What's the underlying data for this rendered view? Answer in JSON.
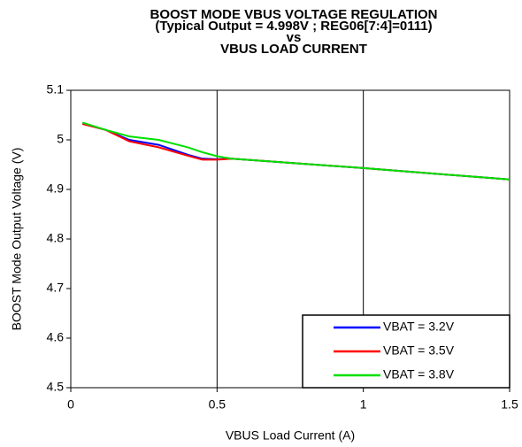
{
  "chart_data": {
    "type": "line",
    "title": [
      "BOOST MODE VBUS VOLTAGE REGULATION",
      "(Typical Output = 4.998V ; REG06[7:4]=0111)",
      "vs",
      "VBUS LOAD CURRENT"
    ],
    "x_label": "VBUS Load Current (A)",
    "y_label": "BOOST Mode Output Voltage (V)",
    "x": [
      0.04,
      0.12,
      0.2,
      0.3,
      0.4,
      0.45,
      0.5,
      0.55,
      1,
      1.5
    ],
    "series": [
      {
        "name": "VBAT = 3.2V",
        "color": "#0000ff",
        "values": [
          5.033,
          5.02,
          5.0,
          4.99,
          4.97,
          4.962,
          4.961,
          4.962,
          4.943,
          4.92
        ]
      },
      {
        "name": "VBAT = 3.5V",
        "color": "#ff0000",
        "values": [
          5.032,
          5.02,
          4.997,
          4.985,
          4.968,
          4.96,
          4.96,
          4.962,
          4.943,
          4.92
        ]
      },
      {
        "name": "VBAT = 3.8V",
        "color": "#00e000",
        "values": [
          5.035,
          5.02,
          5.007,
          5.0,
          4.985,
          4.975,
          4.967,
          4.962,
          4.943,
          4.92
        ]
      }
    ],
    "xlim": [
      0,
      1.5
    ],
    "xticks": [
      0,
      0.5,
      1,
      1.5
    ],
    "ylim": [
      4.5,
      5.1
    ],
    "yticks": [
      4.5,
      4.6,
      4.7,
      4.8,
      4.9,
      5,
      5.1
    ],
    "grid": "x",
    "legend": "lower right"
  }
}
